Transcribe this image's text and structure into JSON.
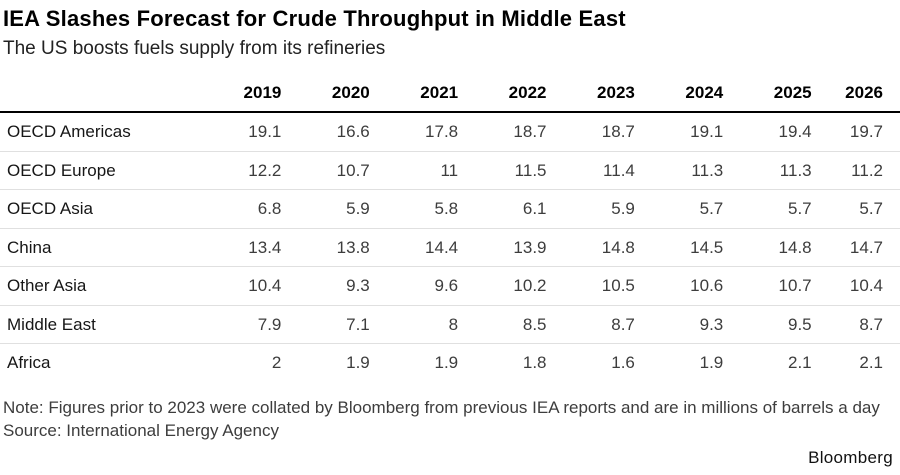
{
  "header": {
    "title": "IEA Slashes Forecast for Crude Throughput in Middle East",
    "subtitle": "The US boosts fuels supply from its refineries"
  },
  "chart_data": {
    "type": "table",
    "title": "IEA Slashes Forecast for Crude Throughput in Middle East",
    "subtitle": "The US boosts fuels supply from its refineries",
    "unit": "millions of barrels a day",
    "columns": [
      "2019",
      "2020",
      "2021",
      "2022",
      "2023",
      "2024",
      "2025",
      "2026"
    ],
    "rows": [
      {
        "label": "OECD Americas",
        "values": [
          "19.1",
          "16.6",
          "17.8",
          "18.7",
          "18.7",
          "19.1",
          "19.4",
          "19.7"
        ]
      },
      {
        "label": "OECD Europe",
        "values": [
          "12.2",
          "10.7",
          "11",
          "11.5",
          "11.4",
          "11.3",
          "11.3",
          "11.2"
        ]
      },
      {
        "label": "OECD Asia",
        "values": [
          "6.8",
          "5.9",
          "5.8",
          "6.1",
          "5.9",
          "5.7",
          "5.7",
          "5.7"
        ]
      },
      {
        "label": "China",
        "values": [
          "13.4",
          "13.8",
          "14.4",
          "13.9",
          "14.8",
          "14.5",
          "14.8",
          "14.7"
        ]
      },
      {
        "label": "Other Asia",
        "values": [
          "10.4",
          "9.3",
          "9.6",
          "10.2",
          "10.5",
          "10.6",
          "10.7",
          "10.4"
        ]
      },
      {
        "label": "Middle East",
        "values": [
          "7.9",
          "7.1",
          "8",
          "8.5",
          "8.7",
          "9.3",
          "9.5",
          "8.7"
        ]
      },
      {
        "label": "Africa",
        "values": [
          "2",
          "1.9",
          "1.9",
          "1.8",
          "1.6",
          "1.9",
          "2.1",
          "2.1"
        ]
      }
    ]
  },
  "footer": {
    "note": "Note: Figures prior to 2023 were collated by Bloomberg from previous IEA reports and are in millions of barrels a day",
    "source": "Source: International Energy Agency",
    "brand": "Bloomberg"
  },
  "colors": {
    "title_text": "#000000",
    "body_text": "#3d3d3d",
    "header_rule": "#000000",
    "row_divider": "#e0e0e0",
    "background": "#ffffff"
  }
}
